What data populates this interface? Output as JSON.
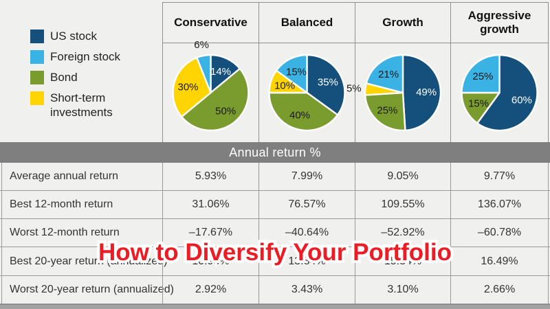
{
  "colors": {
    "us_stock": "#15507c",
    "foreign_stock": "#3ab2e4",
    "bond": "#7a9b2e",
    "short_term": "#ffd400",
    "band_bg": "#7f7f7f",
    "title_red": "#ec1c24",
    "background": "#f0f0ee",
    "border": "#8f8f8f"
  },
  "legend": {
    "items": [
      {
        "label": "US stock",
        "color_key": "us_stock"
      },
      {
        "label": "Foreign stock",
        "color_key": "foreign_stock"
      },
      {
        "label": "Bond",
        "color_key": "bond"
      },
      {
        "label": "Short-term investments",
        "color_key": "short_term"
      }
    ]
  },
  "columns": [
    "Conservative",
    "Balanced",
    "Growth",
    "Aggressive growth"
  ],
  "chart_data": [
    {
      "type": "pie",
      "title": "Conservative",
      "slices": [
        {
          "label": "US stock",
          "value": 14
        },
        {
          "label": "Bond",
          "value": 50
        },
        {
          "label": "Short-term investments",
          "value": 30
        },
        {
          "label": "Foreign stock",
          "value": 6
        }
      ]
    },
    {
      "type": "pie",
      "title": "Balanced",
      "slices": [
        {
          "label": "US stock",
          "value": 35
        },
        {
          "label": "Bond",
          "value": 40
        },
        {
          "label": "Short-term investments",
          "value": 10
        },
        {
          "label": "Foreign stock",
          "value": 15
        }
      ]
    },
    {
      "type": "pie",
      "title": "Growth",
      "slices": [
        {
          "label": "US stock",
          "value": 49
        },
        {
          "label": "Bond",
          "value": 25
        },
        {
          "label": "Short-term investments",
          "value": 5
        },
        {
          "label": "Foreign stock",
          "value": 21
        }
      ]
    },
    {
      "type": "pie",
      "title": "Aggressive growth",
      "slices": [
        {
          "label": "US stock",
          "value": 60
        },
        {
          "label": "Bond",
          "value": 15
        },
        {
          "label": "Foreign stock",
          "value": 25
        }
      ]
    },
    {
      "type": "table",
      "title": "Annual return %",
      "columns": [
        "Conservative",
        "Balanced",
        "Growth",
        "Aggressive growth"
      ],
      "rows": [
        {
          "label": "Average annual return",
          "values": [
            "5.93%",
            "7.99%",
            "9.05%",
            "9.77%"
          ]
        },
        {
          "label": "Best 12-month return",
          "values": [
            "31.06%",
            "76.57%",
            "109.55%",
            "136.07%"
          ]
        },
        {
          "label": "Worst 12-month return",
          "values": [
            "–17.67%",
            "–40.64%",
            "–52.92%",
            "–60.78%"
          ]
        },
        {
          "label": "Best 20-year return (annualized)",
          "values": [
            "10.98%",
            "13.84%",
            "15.34%",
            "16.49%"
          ]
        },
        {
          "label": "Worst 20-year return (annualized)",
          "values": [
            "2.92%",
            "3.43%",
            "3.10%",
            "2.66%"
          ]
        }
      ]
    }
  ],
  "band": {
    "title": "Annual return %"
  },
  "overlay": {
    "title": "How to Diversify Your Portfolio"
  }
}
